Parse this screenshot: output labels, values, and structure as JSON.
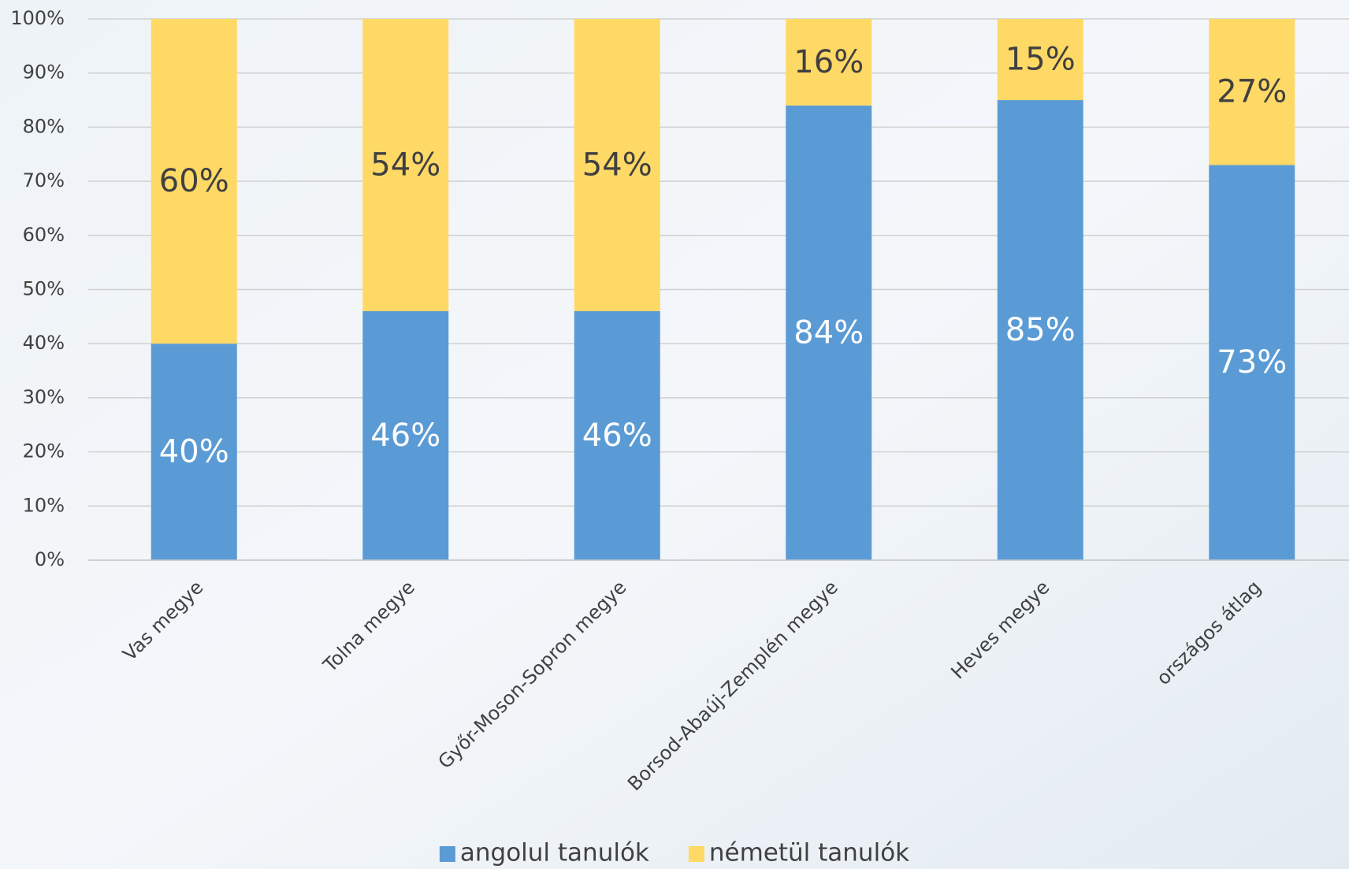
{
  "chart_data": {
    "type": "stacked_bar",
    "categories": [
      "Vas megye",
      "Tolna megye",
      "Győr-Moson-Sopron megye",
      "Borsod-Abaúj-Zemplén megye",
      "Heves megye",
      "országos átlag"
    ],
    "series": [
      {
        "name": "angolul tanulók",
        "color": "#5b9bd5",
        "values": [
          40,
          46,
          46,
          84,
          85,
          73
        ],
        "value_labels": [
          "40%",
          "46%",
          "46%",
          "84%",
          "85%",
          "73%"
        ]
      },
      {
        "name": "németül tanulók",
        "color": "#ffd966",
        "values": [
          60,
          54,
          54,
          16,
          15,
          27
        ],
        "value_labels": [
          "60%",
          "54%",
          "54%",
          "16%",
          "15%",
          "27%"
        ]
      }
    ],
    "ylim": [
      0,
      100
    ],
    "yticks": [
      {
        "value": 0,
        "label": "0%"
      },
      {
        "value": 10,
        "label": "10%"
      },
      {
        "value": 20,
        "label": "20%"
      },
      {
        "value": 30,
        "label": "30%"
      },
      {
        "value": 40,
        "label": "40%"
      },
      {
        "value": 50,
        "label": "50%"
      },
      {
        "value": 60,
        "label": "60%"
      },
      {
        "value": 70,
        "label": "70%"
      },
      {
        "value": 80,
        "label": "80%"
      },
      {
        "value": 90,
        "label": "90%"
      },
      {
        "value": 100,
        "label": "100%"
      }
    ],
    "grid": true,
    "legend": "bottom"
  }
}
